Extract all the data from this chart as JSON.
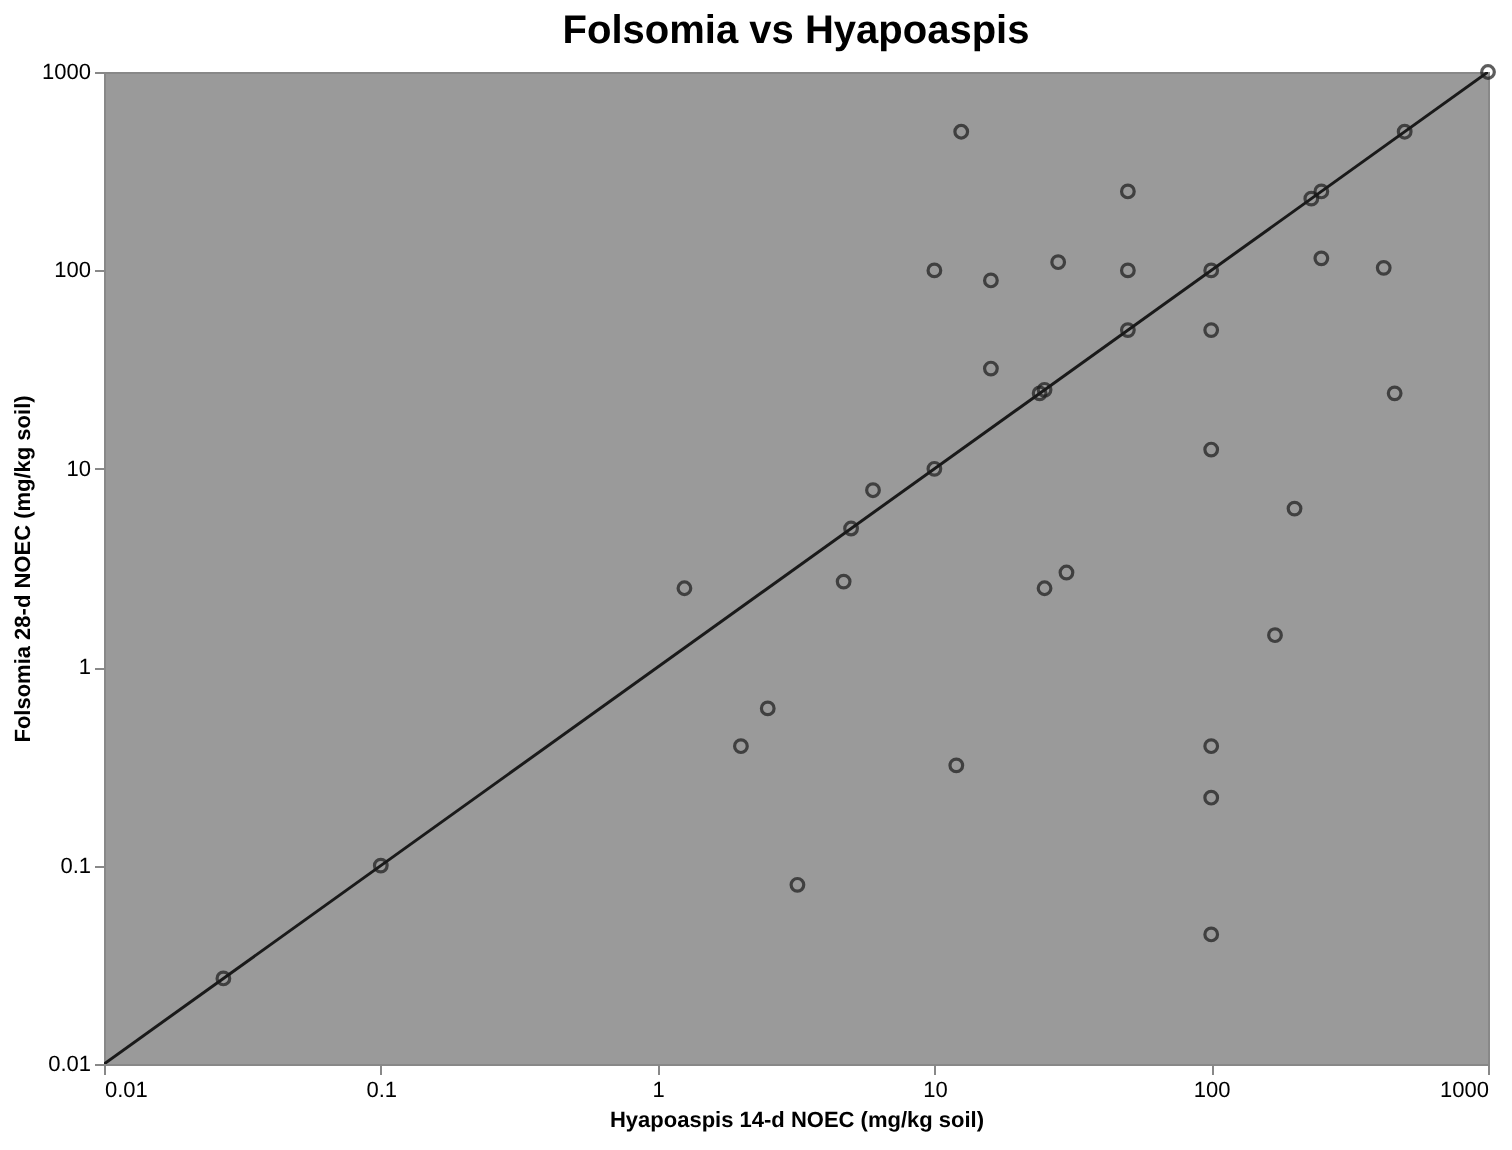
{
  "chart_data": {
    "type": "scatter",
    "title": "Folsomia vs Hyapoaspis",
    "xlabel": "Hyapoaspis  14-d NOEC (mg/kg soil)",
    "ylabel": "Folsomia 28-d NOEC (mg/kg soil)",
    "log": "xy",
    "xlim": [
      0.01,
      1000
    ],
    "ylim": [
      0.01,
      1000
    ],
    "xticks": [
      0.01,
      0.1,
      1,
      10,
      100,
      1000
    ],
    "yticks": [
      0.01,
      0.1,
      1,
      10,
      100,
      1000
    ],
    "grid": false,
    "series": [
      {
        "type": "line",
        "color": "#1a1a1a",
        "line_style": "solid",
        "marker": "none",
        "x": [
          0.01,
          1000
        ],
        "values": [
          0.01,
          1000
        ]
      },
      {
        "color": "#1a1a1a",
        "marker": "circle",
        "x": [
          1000,
          500,
          12.5,
          50,
          230,
          250,
          10,
          16,
          28,
          50,
          100,
          250,
          420,
          50,
          100,
          16,
          24,
          25,
          460,
          10,
          100,
          6,
          5,
          200,
          1.25,
          2.5,
          2,
          0.1,
          0.027,
          3.2,
          4.7,
          25,
          30,
          170,
          12,
          100,
          100,
          100
        ],
        "values": [
          1000,
          500,
          500,
          250,
          230,
          250,
          100,
          89,
          110,
          100,
          100,
          115,
          103,
          50,
          50,
          32,
          24,
          25,
          24,
          10,
          12.5,
          7.8,
          5,
          6.3,
          2.5,
          0.62,
          0.4,
          0.1,
          0.027,
          0.08,
          2.7,
          2.5,
          3,
          1.45,
          0.32,
          0.4,
          0.22,
          0.045
        ]
      }
    ]
  }
}
